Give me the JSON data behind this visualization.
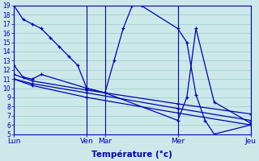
{
  "background_color": "#cce8e8",
  "line_color": "#0000bb",
  "grid_color": "#99cccc",
  "xlabel": "Température (°c)",
  "ylim": [
    5,
    19
  ],
  "yticks": [
    5,
    6,
    7,
    8,
    9,
    10,
    11,
    12,
    13,
    14,
    15,
    16,
    17,
    18,
    19
  ],
  "day_labels": [
    "Lun",
    "Ven",
    "Mar",
    "Mer",
    "Jeu"
  ],
  "total_steps": 26,
  "line1": {
    "x": [
      0,
      1,
      2,
      3,
      4,
      5,
      6,
      7,
      8,
      10,
      11,
      12,
      13,
      14,
      18,
      19,
      20,
      21,
      22,
      26
    ],
    "y": [
      19,
      17.5,
      17,
      16.5,
      15.5,
      14.5,
      13.5,
      12.5,
      10,
      9.5,
      13,
      16.5,
      19,
      19,
      16.5,
      15,
      9.3,
      6.5,
      5,
      6
    ]
  },
  "line2": {
    "x": [
      0,
      1,
      2,
      3,
      8,
      10,
      18,
      19,
      20,
      22,
      26
    ],
    "y": [
      12.5,
      11.2,
      11.0,
      11.5,
      10,
      9.5,
      6.5,
      9,
      16.5,
      8.5,
      6.2
    ]
  },
  "line3": {
    "x": [
      0,
      2,
      8,
      18,
      26
    ],
    "y": [
      11.5,
      10.8,
      9.8,
      8.3,
      7.2
    ]
  },
  "line4": {
    "x": [
      0,
      2,
      8,
      18,
      26
    ],
    "y": [
      11.0,
      10.5,
      9.5,
      7.8,
      6.5
    ]
  },
  "line5": {
    "x": [
      0,
      2,
      8,
      18,
      26
    ],
    "y": [
      11.0,
      10.3,
      9.0,
      7.3,
      6.0
    ]
  }
}
